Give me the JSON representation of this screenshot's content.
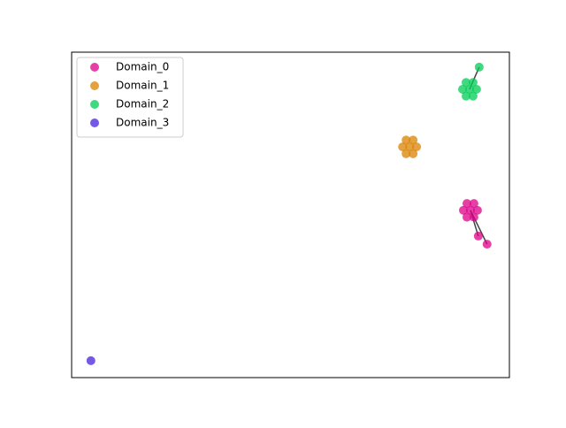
{
  "chart_data": {
    "type": "scatter",
    "xlim": [
      0,
      1
    ],
    "ylim": [
      0,
      1
    ],
    "legend": "upper left",
    "series": [
      {
        "name": "Domain_0",
        "color": "#dd0088",
        "x": [
          0.911,
          0.895,
          0.927,
          0.903,
          0.919,
          0.903,
          0.919,
          0.929,
          0.949
        ],
        "y": [
          0.514,
          0.514,
          0.514,
          0.535,
          0.535,
          0.493,
          0.493,
          0.435,
          0.41
        ]
      },
      {
        "name": "Domain_1",
        "color": "#d98200",
        "x": [
          0.772,
          0.756,
          0.788,
          0.764,
          0.78,
          0.764,
          0.78
        ],
        "y": [
          0.709,
          0.709,
          0.709,
          0.73,
          0.73,
          0.688,
          0.688
        ]
      },
      {
        "name": "Domain_2",
        "color": "#00cc55",
        "x": [
          0.909,
          0.893,
          0.925,
          0.901,
          0.917,
          0.901,
          0.917,
          0.931
        ],
        "y": [
          0.886,
          0.886,
          0.886,
          0.907,
          0.907,
          0.865,
          0.865,
          0.954
        ]
      },
      {
        "name": "Domain_3",
        "color": "#4422dd",
        "x": [
          0.044
        ],
        "y": [
          0.052
        ]
      }
    ]
  }
}
